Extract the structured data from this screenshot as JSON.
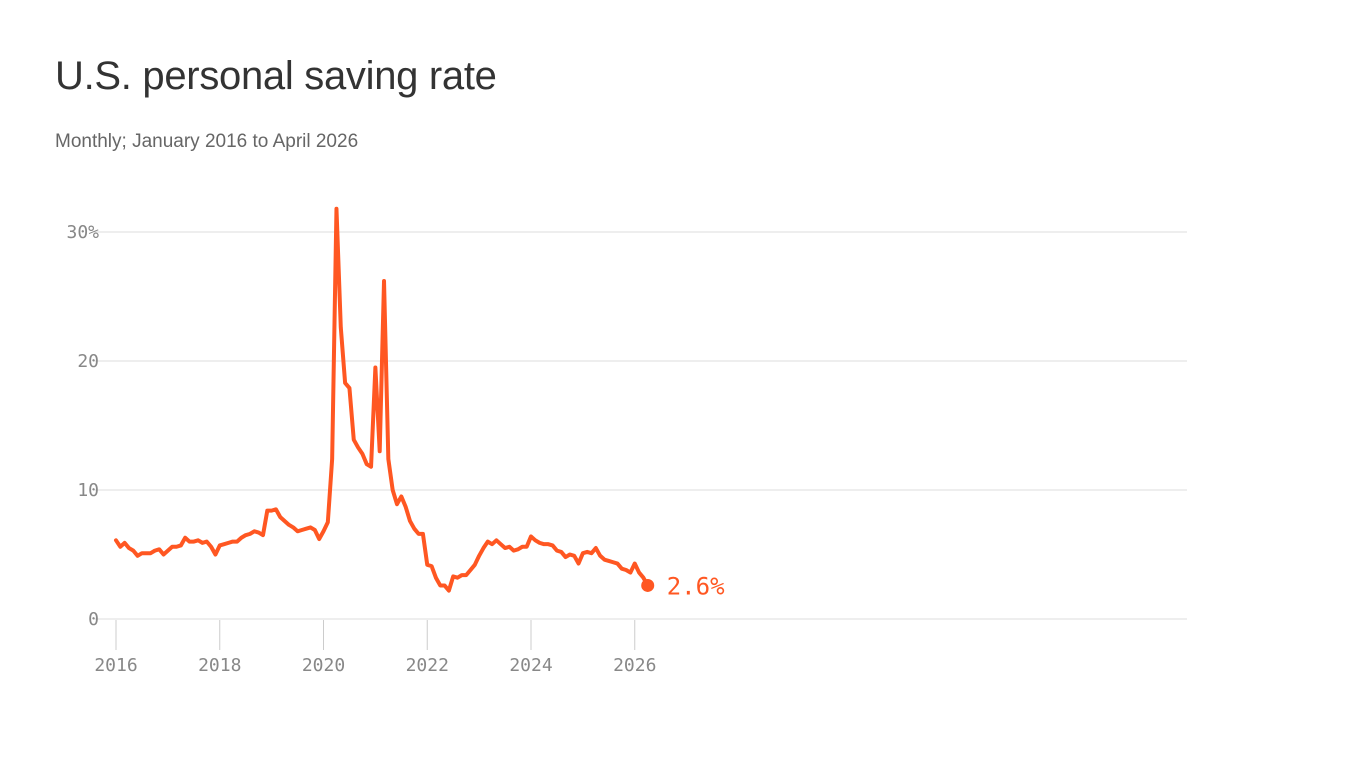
{
  "title": "U.S. personal saving rate",
  "subtitle": "Monthly; January 2016 to April 2026",
  "colors": {
    "line": "#ff5722",
    "grid": "#dddddd",
    "axis_text": "#888888",
    "title": "#333333",
    "subtitle": "#666666"
  },
  "chart_data": {
    "type": "line",
    "title": "U.S. personal saving rate",
    "subtitle": "Monthly; January 2016 to April 2026",
    "xlabel": "",
    "ylabel": "",
    "y_unit": "%",
    "x_start": "2016-01",
    "x_end": "2026-04",
    "xlim": [
      "2016-01",
      "2026-04"
    ],
    "ylim": [
      0,
      30
    ],
    "y_ticks": [
      {
        "value": 0,
        "label": "0"
      },
      {
        "value": 10,
        "label": "10"
      },
      {
        "value": 20,
        "label": "20"
      },
      {
        "value": 30,
        "label": "30%"
      }
    ],
    "x_ticks": [
      {
        "value": 2016,
        "label": "2016"
      },
      {
        "value": 2018,
        "label": "2018"
      },
      {
        "value": 2020,
        "label": "2020"
      },
      {
        "value": 2022,
        "label": "2022"
      },
      {
        "value": 2024,
        "label": "2024"
      },
      {
        "value": 2026,
        "label": "2026"
      }
    ],
    "grid": true,
    "legend": "none",
    "series": [
      {
        "values": [
          6.1,
          5.6,
          5.9,
          5.5,
          5.3,
          4.9,
          5.1,
          5.1,
          5.1,
          5.3,
          5.4,
          5.0,
          5.3,
          5.6,
          5.6,
          5.7,
          6.3,
          6.0,
          6.0,
          6.1,
          5.9,
          6.0,
          5.6,
          5.0,
          5.7,
          5.8,
          5.9,
          6.0,
          6.0,
          6.3,
          6.5,
          6.6,
          6.8,
          6.7,
          6.5,
          8.4,
          8.4,
          8.5,
          7.9,
          7.6,
          7.3,
          7.1,
          6.8,
          6.9,
          7.0,
          7.1,
          6.9,
          6.2,
          6.8,
          7.5,
          12.4,
          31.8,
          22.6,
          18.3,
          17.9,
          13.9,
          13.3,
          12.8,
          12.0,
          11.8,
          19.5,
          13.0,
          26.2,
          12.4,
          10.0,
          8.9,
          9.5,
          8.7,
          7.6,
          7.0,
          6.6,
          6.6,
          4.2,
          4.1,
          3.2,
          2.6,
          2.6,
          2.2,
          3.3,
          3.2,
          3.4,
          3.4,
          3.8,
          4.2,
          4.9,
          5.5,
          6.0,
          5.8,
          6.1,
          5.8,
          5.5,
          5.6,
          5.3,
          5.4,
          5.6,
          5.6,
          6.4,
          6.1,
          5.9,
          5.8,
          5.8,
          5.7,
          5.3,
          5.2,
          4.8,
          5.0,
          4.9,
          4.3,
          5.1,
          5.2,
          5.1,
          5.5,
          4.9,
          4.6,
          4.5,
          4.4,
          4.3,
          3.9,
          3.8,
          3.6,
          4.3,
          3.6,
          3.2,
          2.6
        ]
      }
    ],
    "end_label": "2.6%"
  }
}
